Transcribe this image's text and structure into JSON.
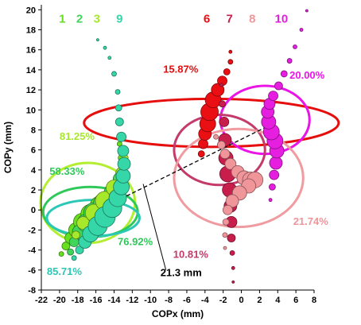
{
  "chart_data": {
    "type": "scatter",
    "xlabel": "COPx (mm)",
    "ylabel": "COPy (mm)",
    "xlim": [
      -22,
      8
    ],
    "ylim": [
      -8,
      20.5
    ],
    "xticks": [
      -22,
      -20,
      -18,
      -16,
      -14,
      -12,
      -10,
      -8,
      -6,
      -4,
      -2,
      0,
      2,
      4,
      6,
      8
    ],
    "yticks": [
      -8,
      -6,
      -4,
      -2,
      0,
      2,
      4,
      6,
      8,
      10,
      12,
      14,
      16,
      18,
      20
    ],
    "xtick_labels": [
      "-22",
      "-20",
      "-18",
      "-16",
      "-14",
      "-12",
      "-10",
      "-8",
      "-6",
      "-4",
      "-2",
      "0",
      "2",
      "4",
      "6",
      "8"
    ],
    "ytick_labels": [
      "-8",
      "-6",
      "-4",
      "-2",
      "0",
      "2",
      "4",
      "6",
      "8",
      "10",
      "12",
      "14",
      "16",
      "18",
      "20"
    ],
    "grid": false,
    "series_labels": [
      {
        "text": "1",
        "x": -19.7,
        "y": 18.7,
        "color": "#66e01e"
      },
      {
        "text": "2",
        "x": -17.8,
        "y": 18.7,
        "color": "#3fd65a"
      },
      {
        "text": "3",
        "x": -15.9,
        "y": 18.7,
        "color": "#a8e82a"
      },
      {
        "text": "9",
        "x": -13.4,
        "y": 18.7,
        "color": "#35d6a8"
      },
      {
        "text": "6",
        "x": -3.8,
        "y": 18.7,
        "color": "#ea0f12"
      },
      {
        "text": "7",
        "x": -1.3,
        "y": 18.7,
        "color": "#c81e4c"
      },
      {
        "text": "8",
        "x": 1.2,
        "y": 18.7,
        "color": "#f0959a"
      },
      {
        "text": "10",
        "x": 4.4,
        "y": 18.7,
        "color": "#e61ee0"
      }
    ],
    "ellipses": [
      {
        "cx": -3.3,
        "cy": 8.7,
        "rx": 14.0,
        "ry": 2.4,
        "color": "#e60d0d"
      },
      {
        "cx": 2.6,
        "cy": 9.0,
        "rx": 4.9,
        "ry": 3.4,
        "color": "#ea14e6"
      },
      {
        "cx": -2.4,
        "cy": 6.0,
        "rx": 5.0,
        "ry": 3.5,
        "color": "#c43a6a"
      },
      {
        "cx": -0.3,
        "cy": 3.2,
        "rx": 7.1,
        "ry": 4.9,
        "color": "#f09ba0"
      },
      {
        "cx": -16.9,
        "cy": 0.7,
        "rx": 5.2,
        "ry": 4.0,
        "color": "#b4ee30"
      },
      {
        "cx": -16.6,
        "cy": -0.2,
        "rx": 5.2,
        "ry": 2.5,
        "color": "#2fc95a"
      },
      {
        "cx": -16.3,
        "cy": -0.8,
        "rx": 5.1,
        "ry": 1.8,
        "color": "#2bc9b5"
      }
    ],
    "centers": [
      {
        "x": -16.4,
        "y": -0.3
      },
      {
        "x": 3.2,
        "y": 8.5
      }
    ],
    "distance_label": {
      "text": "21.3 mm",
      "x": -8.9,
      "y": -6.6
    },
    "percent_labels": [
      {
        "text": "15.87%",
        "x": -8.6,
        "y": 13.7,
        "color": "#e60d0d"
      },
      {
        "text": "20.00%",
        "x": 5.3,
        "y": 13.1,
        "color": "#ea14e6"
      },
      {
        "text": "81.25%",
        "x": -20.0,
        "y": 7.0,
        "color": "#a8e82a"
      },
      {
        "text": "58.33%",
        "x": -21.1,
        "y": 3.5,
        "color": "#2fc95a"
      },
      {
        "text": "76.92%",
        "x": -13.6,
        "y": -3.5,
        "color": "#2fc95a"
      },
      {
        "text": "85.71%",
        "x": -21.4,
        "y": -6.5,
        "color": "#2bc9b5"
      },
      {
        "text": "10.81%",
        "x": -7.5,
        "y": -4.8,
        "color": "#c43a6a"
      },
      {
        "text": "21.74%",
        "x": 5.7,
        "y": -1.5,
        "color": "#f0959a"
      }
    ],
    "series": [
      {
        "color": "#66e01e",
        "x": [
          -19.8,
          -19.3,
          -18.8,
          -18.2,
          -17.5,
          -16.6,
          -15.6,
          -14.5,
          -13.6,
          -13.2,
          -13.2,
          -13.4
        ],
        "y": [
          -4.4,
          -3.6,
          -2.8,
          -2.0,
          -1.2,
          -0.4,
          0.4,
          1.3,
          2.5,
          3.8,
          5.2,
          6.6
        ],
        "size": [
          3,
          5,
          7,
          9,
          11,
          12,
          12,
          10,
          8,
          6,
          4,
          3
        ]
      },
      {
        "color": "#3fd65a",
        "x": [
          -18.8,
          -18.4,
          -17.8,
          -17.1,
          -16.2,
          -15.2,
          -14.2,
          -13.4,
          -13.0,
          -12.9
        ],
        "y": [
          -4.2,
          -3.2,
          -2.2,
          -1.3,
          -0.3,
          0.7,
          1.8,
          3.1,
          4.4,
          5.8
        ],
        "size": [
          4,
          6,
          9,
          11,
          13,
          12,
          10,
          8,
          5,
          3
        ]
      },
      {
        "color": "#a8e82a",
        "x": [
          -18.2,
          -17.4,
          -16.2,
          -15.0,
          -14.0,
          -13.2,
          -12.8
        ],
        "y": [
          -2.5,
          -1.3,
          -0.3,
          0.9,
          2.2,
          3.7,
          5.2
        ],
        "size": [
          5,
          8,
          11,
          12,
          10,
          7,
          4
        ]
      },
      {
        "color": "#35d6a8",
        "x": [
          -18.4,
          -17.8,
          -17.2,
          -16.6,
          -15.8,
          -15.0,
          -14.2,
          -13.6,
          -13.2,
          -13.0,
          -12.9,
          -13.0,
          -13.2,
          -13.4,
          -13.5,
          -13.6,
          -14.0,
          -14.5,
          -15.0,
          -15.8
        ],
        "y": [
          -4.8,
          -4.0,
          -3.2,
          -2.4,
          -1.6,
          -0.7,
          0.2,
          1.2,
          2.3,
          3.4,
          4.6,
          5.9,
          7.3,
          8.8,
          10.2,
          11.8,
          13.6,
          15.2,
          16.2,
          17.0
        ],
        "size": [
          3,
          5,
          8,
          10,
          12,
          13,
          12,
          11,
          10,
          9,
          8,
          7,
          6,
          5,
          4,
          3,
          3,
          2,
          2,
          1.5
        ]
      },
      {
        "color": "#ea0f12",
        "x": [
          -4.4,
          -4.2,
          -4.0,
          -3.7,
          -3.5,
          -3.1,
          -2.6,
          -2.1,
          -1.6,
          -1.2,
          -1.2
        ],
        "y": [
          5.6,
          6.6,
          7.6,
          8.6,
          9.8,
          11.0,
          12.0,
          12.9,
          13.8,
          14.8,
          15.8
        ],
        "size": [
          4,
          6,
          8,
          10,
          11,
          10,
          8,
          6,
          4,
          3,
          2
        ]
      },
      {
        "color": "#c81e4c",
        "x": [
          -2.2,
          -2.1,
          -1.9,
          -1.8,
          -1.7,
          -1.5,
          -1.3,
          -1.2,
          -1.1,
          -1.1,
          -1.0,
          -0.9,
          -0.9
        ],
        "y": [
          12.5,
          10.6,
          8.8,
          7.0,
          5.2,
          3.6,
          2.0,
          0.4,
          -1.2,
          -2.8,
          -4.3,
          -5.8,
          -7.2
        ],
        "size": [
          2,
          4,
          6,
          8,
          9,
          10,
          9,
          8,
          7,
          5,
          3,
          2,
          1.5
        ]
      },
      {
        "color": "#f0959a",
        "x": [
          -2.8,
          -2.2,
          -1.8,
          -1.2,
          -0.4,
          0.3,
          1.0,
          1.5,
          0.8,
          -0.2,
          -1.0,
          -1.5,
          -1.7,
          -1.8,
          -1.8
        ],
        "y": [
          7.3,
          6.5,
          5.6,
          4.6,
          3.8,
          3.2,
          3.0,
          3.0,
          2.4,
          1.7,
          0.9,
          0.0,
          -1.2,
          -2.5,
          -3.8
        ],
        "size": [
          3,
          5,
          6,
          7,
          8,
          9,
          10,
          10,
          9,
          9,
          8,
          6,
          4,
          3,
          2
        ]
      },
      {
        "color": "#e61ee0",
        "x": [
          3.2,
          3.4,
          3.6,
          3.8,
          3.9,
          3.7,
          3.3,
          3.0,
          2.9,
          3.1,
          3.5,
          4.1,
          4.7,
          5.3,
          5.9,
          6.6,
          7.2
        ],
        "y": [
          1.0,
          2.3,
          3.5,
          4.7,
          5.9,
          6.9,
          7.8,
          8.8,
          9.8,
          10.6,
          11.4,
          12.4,
          13.6,
          14.9,
          16.3,
          18.0,
          19.9
        ],
        "size": [
          2,
          4,
          6,
          8,
          9,
          10,
          10,
          9,
          8,
          7,
          6,
          5,
          4,
          3,
          2.5,
          2,
          1.5
        ]
      }
    ]
  }
}
